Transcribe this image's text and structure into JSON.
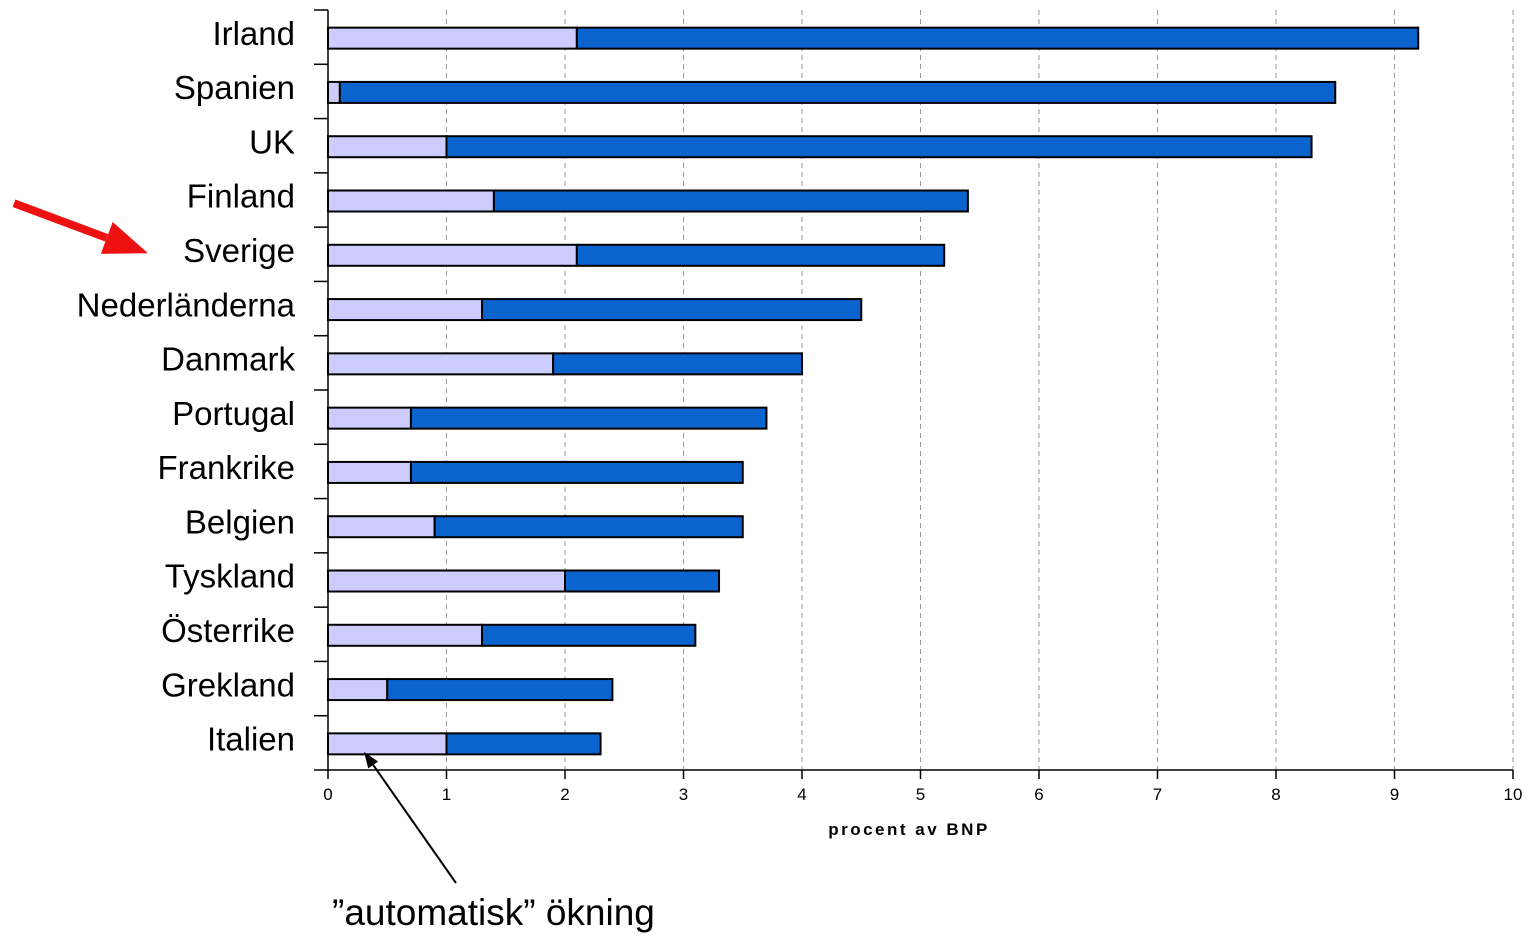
{
  "chart_data": {
    "type": "bar",
    "orientation": "horizontal",
    "stacked": true,
    "categories": [
      "Irland",
      "Spanien",
      "UK",
      "Finland",
      "Sverige",
      "Nederländerna",
      "Danmark",
      "Portugal",
      "Frankrike",
      "Belgien",
      "Tyskland",
      "Österrike",
      "Grekland",
      "Italien"
    ],
    "series": [
      {
        "color": "#ccccff",
        "values": [
          2.1,
          0.1,
          1.0,
          1.4,
          2.1,
          1.3,
          1.9,
          0.7,
          0.7,
          0.9,
          2.0,
          1.3,
          0.5,
          1.0
        ]
      },
      {
        "color": "#0b63ce",
        "values": [
          7.1,
          8.4,
          7.3,
          4.0,
          3.1,
          3.2,
          2.1,
          3.0,
          2.8,
          2.6,
          1.3,
          1.8,
          1.9,
          1.3
        ]
      }
    ],
    "totals": [
      9.2,
      8.5,
      8.3,
      5.4,
      5.2,
      4.5,
      4.0,
      3.7,
      3.5,
      3.5,
      3.3,
      3.1,
      2.4,
      2.3
    ],
    "xlabel": "procent av BNP",
    "xlim": [
      0,
      10
    ],
    "xticks": [
      "0",
      "1",
      "2",
      "3",
      "4",
      "5",
      "6",
      "7",
      "8",
      "9",
      "10"
    ],
    "grid": "vertical dashed",
    "highlight": "Sverige",
    "highlight_arrow_color": "#ee1111",
    "annotation": {
      "text": "”automatisk” ökning",
      "points_to": "Italien first segment"
    }
  }
}
